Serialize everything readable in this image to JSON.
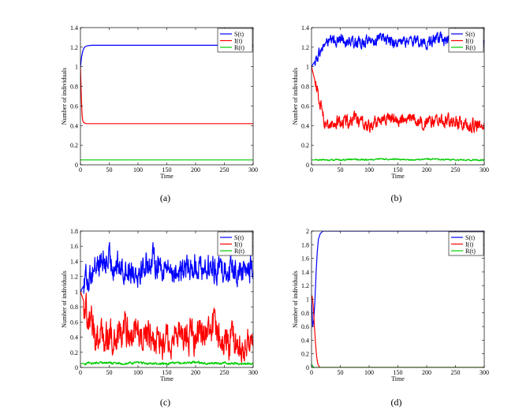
{
  "chart_data": [
    {
      "type": "line",
      "caption": "(a)",
      "xlabel": "Time",
      "ylabel": "Number of individuals",
      "xlim": [
        0,
        300
      ],
      "ylim": [
        0,
        1.4
      ],
      "xticks": [
        0,
        50,
        100,
        150,
        200,
        250,
        300
      ],
      "yticks": [
        0,
        0.2,
        0.4,
        0.6,
        0.8,
        1,
        1.2,
        1.4
      ],
      "legend": "top-right",
      "grid": false,
      "series": [
        {
          "name": "S(t)",
          "color": "#0000ff",
          "x": [
            0,
            2,
            4,
            6,
            8,
            12,
            20,
            300
          ],
          "y": [
            1.0,
            1.1,
            1.16,
            1.19,
            1.205,
            1.215,
            1.22,
            1.22
          ]
        },
        {
          "name": "I(t)",
          "color": "#ff0000",
          "x": [
            0,
            1,
            2,
            3,
            4,
            6,
            10,
            300
          ],
          "y": [
            1.0,
            0.8,
            0.62,
            0.5,
            0.45,
            0.43,
            0.42,
            0.42
          ]
        },
        {
          "name": "R(t)",
          "color": "#00cc00",
          "x": [
            0,
            3,
            300
          ],
          "y": [
            0.05,
            0.05,
            0.05
          ]
        }
      ]
    },
    {
      "type": "line",
      "caption": "(b)",
      "xlabel": "Time",
      "ylabel": "Number of individuals",
      "xlim": [
        0,
        300
      ],
      "ylim": [
        0,
        1.4
      ],
      "xticks": [
        0,
        50,
        100,
        150,
        200,
        250,
        300
      ],
      "yticks": [
        0,
        0.2,
        0.4,
        0.6,
        0.8,
        1,
        1.2,
        1.4
      ],
      "legend": "top-right",
      "grid": false,
      "series": [
        {
          "name": "S(t)",
          "color": "#0000ff",
          "x": [
            0,
            25,
            50,
            75,
            100,
            125,
            150,
            175,
            200,
            225,
            250,
            275,
            300
          ],
          "y": [
            1.0,
            1.25,
            1.28,
            1.24,
            1.26,
            1.29,
            1.24,
            1.27,
            1.25,
            1.28,
            1.23,
            1.26,
            1.22
          ]
        },
        {
          "name": "I(t)",
          "color": "#ff0000",
          "x": [
            0,
            25,
            50,
            75,
            100,
            125,
            150,
            175,
            200,
            225,
            250,
            275,
            300
          ],
          "y": [
            1.0,
            0.4,
            0.44,
            0.46,
            0.38,
            0.5,
            0.45,
            0.47,
            0.42,
            0.46,
            0.44,
            0.41,
            0.4
          ]
        },
        {
          "name": "R(t)",
          "color": "#00cc00",
          "x": [
            0,
            25,
            50,
            75,
            100,
            125,
            150,
            175,
            200,
            225,
            250,
            275,
            300
          ],
          "y": [
            0.05,
            0.05,
            0.05,
            0.055,
            0.05,
            0.06,
            0.055,
            0.05,
            0.06,
            0.055,
            0.05,
            0.05,
            0.05
          ]
        }
      ]
    },
    {
      "type": "line",
      "caption": "(c)",
      "xlabel": "Time",
      "ylabel": "Number of individuals",
      "xlim": [
        0,
        300
      ],
      "ylim": [
        0,
        1.8
      ],
      "xticks": [
        0,
        50,
        100,
        150,
        200,
        250,
        300
      ],
      "yticks": [
        0,
        0.2,
        0.4,
        0.6,
        0.8,
        1,
        1.2,
        1.4,
        1.6,
        1.8
      ],
      "legend": "top-right",
      "grid": false,
      "series": [
        {
          "name": "S(t)",
          "color": "#0000ff",
          "x": [
            0,
            25,
            50,
            75,
            100,
            125,
            150,
            175,
            200,
            225,
            250,
            275,
            300
          ],
          "y": [
            1.0,
            1.35,
            1.4,
            1.3,
            1.28,
            1.42,
            1.3,
            1.25,
            1.35,
            1.3,
            1.32,
            1.28,
            1.3
          ]
        },
        {
          "name": "I(t)",
          "color": "#ff0000",
          "x": [
            0,
            25,
            50,
            75,
            100,
            125,
            150,
            175,
            200,
            225,
            250,
            275,
            300
          ],
          "y": [
            1.0,
            0.45,
            0.35,
            0.5,
            0.45,
            0.3,
            0.35,
            0.45,
            0.4,
            0.55,
            0.35,
            0.3,
            0.3
          ]
        },
        {
          "name": "R(t)",
          "color": "#00cc00",
          "x": [
            0,
            25,
            50,
            75,
            100,
            125,
            150,
            175,
            200,
            225,
            250,
            275,
            300
          ],
          "y": [
            0.05,
            0.06,
            0.06,
            0.05,
            0.06,
            0.05,
            0.05,
            0.06,
            0.07,
            0.05,
            0.06,
            0.05,
            0.05
          ]
        }
      ]
    },
    {
      "type": "line",
      "caption": "(d)",
      "xlabel": "Time",
      "ylabel": "Number of individuals",
      "xlim": [
        0,
        300
      ],
      "ylim": [
        0,
        2
      ],
      "xticks": [
        0,
        50,
        100,
        150,
        200,
        250,
        300
      ],
      "yticks": [
        0,
        0.2,
        0.4,
        0.6,
        0.8,
        1,
        1.2,
        1.4,
        1.6,
        1.8,
        2
      ],
      "legend": "top-right",
      "grid": false,
      "series": [
        {
          "name": "S(t)",
          "color": "#0000ff",
          "x": [
            0,
            2,
            4,
            6,
            8,
            10,
            12,
            15,
            20,
            300
          ],
          "y": [
            1.0,
            0.6,
            0.7,
            1.0,
            1.4,
            1.7,
            1.88,
            1.96,
            2.0,
            2.0
          ]
        },
        {
          "name": "I(t)",
          "color": "#ff0000",
          "x": [
            0,
            1,
            3,
            5,
            7,
            9,
            11,
            14,
            300
          ],
          "y": [
            1.0,
            1.05,
            0.9,
            0.6,
            0.35,
            0.15,
            0.05,
            0.0,
            0.0
          ]
        },
        {
          "name": "R(t)",
          "color": "#00cc00",
          "x": [
            0,
            2,
            4,
            300
          ],
          "y": [
            0.05,
            0.02,
            0.0,
            0.0
          ]
        }
      ]
    }
  ]
}
